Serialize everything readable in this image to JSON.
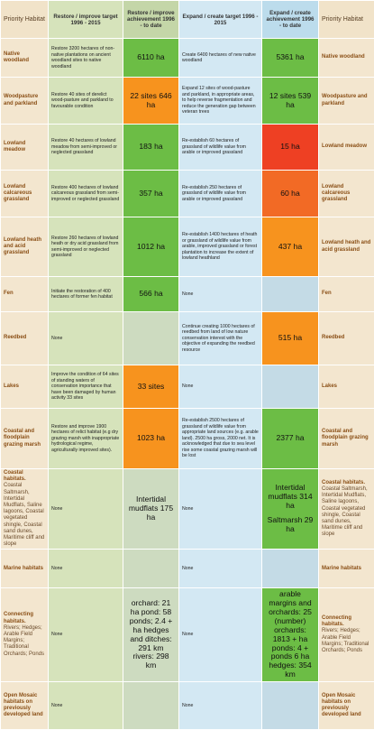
{
  "table": {
    "header": [
      "Priority Habitat",
      "Restore / improve target 1996 - 2015",
      "Restore / improve achievement 1996 - to date",
      "Expand / create target 1996 - 2015",
      "Expand / create achievement 1996 - to date",
      "Priority Habitat"
    ],
    "rows": [
      {
        "habitat": {
          "name": "Native woodland"
        },
        "restore_target": "Restore 3200 hectares of non-native plantations on ancient woodland sites to native woodland",
        "restore_achievement": {
          "blocks": [
            "6110 ha"
          ],
          "color": "#6cbd45"
        },
        "expand_target": "Create 6400 hectares of new native woodland",
        "expand_achievement": {
          "blocks": [
            "5361 ha"
          ],
          "color": "#6cbd45"
        }
      },
      {
        "habitat": {
          "name": "Woodpasture and parkland"
        },
        "restore_target": "Restore 40 sites of derelict wood-pasture and parkland to favourable condition",
        "restore_achievement": {
          "blocks": [
            "22 sites 646 ha"
          ],
          "color": "#f7931e"
        },
        "expand_target": "Expand 12 sites of wood-pasture and parkland, in appropriate areas, to help reverse fragmentation and reduce the generation gap between veteran trees",
        "expand_achievement": {
          "blocks": [
            "12 sites 539 ha"
          ],
          "color": "#6cbd45"
        }
      },
      {
        "habitat": {
          "name": "Lowland meadow"
        },
        "restore_target": "Restore 40 hectares of lowland meadow from semi-improved or neglected grassland",
        "restore_achievement": {
          "blocks": [
            "183 ha"
          ],
          "color": "#6cbd45"
        },
        "expand_target": "Re-establish 60 hectares of grassland of wildlife value from arable or improved grassland",
        "expand_achievement": {
          "blocks": [
            "15 ha"
          ],
          "color": "#ee4023"
        }
      },
      {
        "habitat": {
          "name": "Lowland calcareous grassland"
        },
        "restore_target": "Restore 400 hectares of lowland calcareous grassland from semi-improved or neglected grassland",
        "restore_achievement": {
          "blocks": [
            "357 ha"
          ],
          "color": "#6cbd45"
        },
        "expand_target": "Re-establish 250 hectares of grassland of wildlife value from arable or improved grassland",
        "expand_achievement": {
          "blocks": [
            "60 ha"
          ],
          "color": "#f26a25"
        }
      },
      {
        "habitat": {
          "name": "Lowland heath and acid grassland"
        },
        "restore_target": "Restore 260 hectares of lowland heath or dry acid grassland from semi-improved or neglected grassland",
        "restore_achievement": {
          "blocks": [
            "1012 ha"
          ],
          "color": "#6cbd45"
        },
        "expand_target": "Re-establish 1400 hectares of heath or grassland of wildlife value from arable, improved grassland or forest plantation to increase the extent of lowland heathland",
        "expand_achievement": {
          "blocks": [
            "437 ha"
          ],
          "color": "#f7931e"
        }
      },
      {
        "habitat": {
          "name": "Fen"
        },
        "restore_target": "Initiate the restoration of 400 hectares of former fen habitat",
        "restore_achievement": {
          "blocks": [
            "566 ha"
          ],
          "color": "#6cbd45"
        },
        "expand_target": "None",
        "expand_achievement": {
          "blocks": [],
          "color": "#c4dbe6"
        }
      },
      {
        "habitat": {
          "name": "Reedbed"
        },
        "restore_target": "None",
        "restore_achievement": {
          "blocks": [],
          "color": "#cddbc0"
        },
        "expand_target": "Continue creating 1000 hectares of reedbed from land of low nature conservation interest with the objective of expanding the reedbed resource",
        "expand_achievement": {
          "blocks": [
            "515 ha"
          ],
          "color": "#f7931e"
        }
      },
      {
        "habitat": {
          "name": "Lakes"
        },
        "restore_target": "Improve the condition of 64 sites of standing waters of conservation importance that have been damaged by human activity 33 sites",
        "restore_achievement": {
          "blocks": [
            "33 sites"
          ],
          "color": "#f7931e"
        },
        "expand_target": "None",
        "expand_achievement": {
          "blocks": [],
          "color": "#c4dbe6"
        }
      },
      {
        "habitat": {
          "name": "Coastal and floodplain grazing marsh"
        },
        "restore_target": "Restore and improve 1900 hectares of relict habitat (e.g dry grazing marsh with inappropriate hydrological regime, agriculturally improved sites).",
        "restore_achievement": {
          "blocks": [
            "1023 ha"
          ],
          "color": "#f7931e"
        },
        "expand_target": "Re-establish 2500 hectares of grassland of wildlife value from appropriate land sources (e.g. arable land). 2500 ha gross, 2000 net. It is acknowledged that due to sea level rise some coastal grazing marsh will be lost",
        "expand_achievement": {
          "blocks": [
            "2377 ha"
          ],
          "color": "#6cbd45"
        }
      },
      {
        "habitat": {
          "name": "Coastal habitats.",
          "detail": "Coastal Saltmarsh, Intertidal Mudflats, Saline lagoons, Coastal vegetated shingle, Coastal sand dunes, Maritime cliff and slope"
        },
        "restore_target": "None",
        "restore_achievement": {
          "blocks": [
            "Intertidal mudflats 175 ha"
          ],
          "color": "#cddbc0"
        },
        "expand_target": "None",
        "expand_achievement": {
          "blocks": [
            "Intertidal mudflats 314 ha",
            "Saltmarsh 29 ha"
          ],
          "color": "#6cbd45"
        }
      },
      {
        "habitat": {
          "name": "Marine habitats"
        },
        "restore_target": "None",
        "restore_achievement": {
          "blocks": [],
          "color": "#cddbc0"
        },
        "expand_target": "None",
        "expand_achievement": {
          "blocks": [],
          "color": "#c4dbe6"
        }
      },
      {
        "habitat": {
          "name": "Connecting habitats.",
          "detail": "Rivers; Hedges; Arable Field Margins; Traditional Orchards; Ponds"
        },
        "restore_target": "None",
        "restore_achievement": {
          "blocks": [
            "orchard: 21 ha pond: 58 ponds; 2.4 + ha hedges and ditches: 291 km rivers: 298 km"
          ],
          "color": "#cddbc0"
        },
        "expand_target": "None",
        "expand_achievement": {
          "blocks": [
            "arable margins and orchards: 25 (number) orchards: 1813 + ha ponds: 4 + ponds 6 ha hedges: 354 km"
          ],
          "color": "#6cbd45"
        }
      },
      {
        "habitat": {
          "name": "Open Mosaic habitats on previously developed land"
        },
        "restore_target": "None",
        "restore_achievement": {
          "blocks": [],
          "color": "#cddbc0"
        },
        "expand_target": "None",
        "expand_achievement": {
          "blocks": [],
          "color": "#c4dbe6"
        }
      }
    ]
  }
}
